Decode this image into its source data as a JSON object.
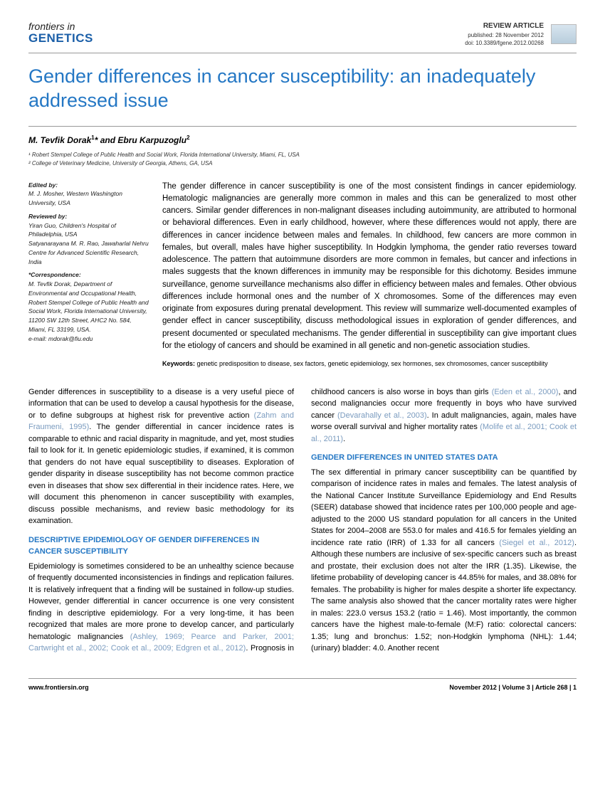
{
  "journal": {
    "top": "frontiers in",
    "bottom": "GENETICS"
  },
  "meta": {
    "type": "REVIEW ARTICLE",
    "published": "published: 28 November 2012",
    "doi": "doi: 10.3389/fgene.2012.00268"
  },
  "title": "Gender differences in cancer susceptibility: an inadequately addressed issue",
  "authors_html": "M. Tevfik Dorak¹* and Ebru Karpuzoglu²",
  "affiliations": [
    "¹ Robert Stempel College of Public Health and Social Work, Florida International University, Miami, FL, USA",
    "² College of Veterinary Medicine, University of Georgia, Athens, GA, USA"
  ],
  "sidebar": {
    "edited_label": "Edited by:",
    "edited": "M. J. Mosher, Western Washington University, USA",
    "reviewed_label": "Reviewed by:",
    "reviewed1": "Yiran Guo, Children's Hospital of Philadelphia, USA",
    "reviewed2": "Satyanarayana M. R. Rao, Jawaharlal Nehru Centre for Advanced Scientific Research, India",
    "corr_label": "*Correspondence:",
    "corr": "M. Tevfik Dorak, Department of Environmental and Occupational Health, Robert Stempel College of Public Health and Social Work, Florida International University, 11200 SW 12th Street, AHC2 No. 584, Miami, FL 33199, USA.",
    "email": "e-mail: mdorak@fiu.edu"
  },
  "abstract": "The gender difference in cancer susceptibility is one of the most consistent findings in cancer epidemiology. Hematologic malignancies are generally more common in males and this can be generalized to most other cancers. Similar gender differences in non-malignant diseases including autoimmunity, are attributed to hormonal or behavioral differences. Even in early childhood, however, where these differences would not apply, there are differences in cancer incidence between males and females. In childhood, few cancers are more common in females, but overall, males have higher susceptibility. In Hodgkin lymphoma, the gender ratio reverses toward adolescence. The pattern that autoimmune disorders are more common in females, but cancer and infections in males suggests that the known differences in immunity may be responsible for this dichotomy. Besides immune surveillance, genome surveillance mechanisms also differ in efficiency between males and females. Other obvious differences include hormonal ones and the number of X chromosomes. Some of the differences may even originate from exposures during prenatal development. This review will summarize well-documented examples of gender effect in cancer susceptibility, discuss methodological issues in exploration of gender differences, and present documented or speculated mechanisms. The gender differential in susceptibility can give important clues for the etiology of cancers and should be examined in all genetic and non-genetic association studies.",
  "keywords_label": "Keywords:",
  "keywords": "genetic predisposition to disease, sex factors, genetic epidemiology, sex hormones, sex chromosomes, cancer susceptibility",
  "body": {
    "intro": "Gender differences in susceptibility to a disease is a very useful piece of information that can be used to develop a causal hypothesis for the disease, or to define subgroups at highest risk for preventive action ",
    "intro_cite1": "(Zahm and Fraumeni, 1995)",
    "intro2": ". The gender differential in cancer incidence rates is comparable to ethnic and racial disparity in magnitude, and yet, most studies fail to look for it. In genetic epidemiologic studies, if examined, it is common that genders do not have equal susceptibility to diseases. Exploration of gender disparity in disease susceptibility has not become common practice even in diseases that show sex differential in their incidence rates. Here, we will document this phenomenon in cancer susceptibility with examples, discuss possible mechanisms, and review basic methodology for its examination.",
    "sec1_head": "DESCRIPTIVE EPIDEMIOLOGY OF GENDER DIFFERENCES IN CANCER SUSCEPTIBILITY",
    "sec1_p1a": "Epidemiology is sometimes considered to be an unhealthy science because of frequently documented inconsistencies in findings and replication failures. It is relatively infrequent that a finding will be sustained in follow-up studies. However, gender differential in cancer occurrence is one very consistent finding in descriptive epidemiology. For a very long-time, it has been recognized that males are more prone to develop cancer, and particularly hematologic malignancies ",
    "sec1_cite1": "(Ashley, 1969; Pearce and Parker, 2001; Cartwright et al., 2002; Cook et al., 2009; Edgren et al., 2012)",
    "sec1_p1b": ". Prognosis in childhood cancers is also worse in boys than girls ",
    "sec1_cite2": "(Eden et al., 2000)",
    "sec1_p1c": ", and second malignancies occur more frequently in boys who have survived cancer ",
    "sec1_cite3": "(Devarahally et al., 2003)",
    "sec1_p1d": ". In adult malignancies, again, males have worse overall survival and higher mortality rates ",
    "sec1_cite4": "(Molife et al., 2001; Cook et al., 2011)",
    "sec1_p1e": ".",
    "sec2_head": "GENDER DIFFERENCES IN UNITED STATES DATA",
    "sec2_p1a": "The sex differential in primary cancer susceptibility can be quantified by comparison of incidence rates in males and females. The latest analysis of the National Cancer Institute Surveillance Epidemiology and End Results (SEER) database showed that incidence rates per 100,000 people and age-adjusted to the 2000 US standard population for all cancers in the United States for 2004–2008 are 553.0 for males and 416.5 for females yielding an incidence rate ratio (IRR) of 1.33 for all cancers ",
    "sec2_cite1": "(Siegel et al., 2012)",
    "sec2_p1b": ". Although these numbers are inclusive of sex-specific cancers such as breast and prostate, their exclusion does not alter the IRR (1.35). Likewise, the lifetime probability of developing cancer is 44.85% for males, and 38.08% for females. The probability is higher for males despite a shorter life expectancy. The same analysis also showed that the cancer mortality rates were higher in males: 223.0 versus 153.2 (ratio = 1.46). Most importantly, the common cancers have the highest male-to-female (M:F) ratio: colorectal cancers: 1.35; lung and bronchus: 1.52; non-Hodgkin lymphoma (NHL): 1.44; (urinary) bladder: 4.0. Another recent"
  },
  "footer": {
    "left": "www.frontiersin.org",
    "right": "November 2012 | Volume 3 | Article 268 | 1"
  }
}
